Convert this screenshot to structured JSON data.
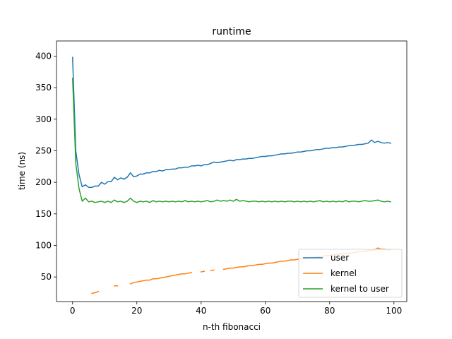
{
  "chart_data": {
    "type": "line",
    "title": "runtime",
    "xlabel": "n-th fibonacci",
    "ylabel": "time (ns)",
    "xlim": [
      -5,
      104
    ],
    "ylim": [
      11,
      424
    ],
    "xticks": [
      0,
      20,
      40,
      60,
      80,
      100
    ],
    "yticks": [
      50,
      100,
      150,
      200,
      250,
      300,
      350,
      400
    ],
    "legend": {
      "position": "lower-right"
    },
    "grid": false,
    "series": [
      {
        "name": "user",
        "color": "#1f77b4",
        "x": [
          0,
          1,
          2,
          3,
          4,
          5,
          6,
          7,
          8,
          9,
          10,
          11,
          12,
          13,
          14,
          15,
          16,
          17,
          18,
          19,
          20,
          21,
          22,
          23,
          24,
          25,
          26,
          27,
          28,
          29,
          30,
          31,
          32,
          33,
          34,
          35,
          36,
          37,
          38,
          39,
          40,
          41,
          42,
          43,
          44,
          45,
          46,
          47,
          48,
          49,
          50,
          51,
          52,
          53,
          54,
          55,
          56,
          57,
          58,
          59,
          60,
          61,
          62,
          63,
          64,
          65,
          66,
          67,
          68,
          69,
          70,
          71,
          72,
          73,
          74,
          75,
          76,
          77,
          78,
          79,
          80,
          81,
          82,
          83,
          84,
          85,
          86,
          87,
          88,
          89,
          90,
          91,
          92,
          93,
          94,
          95,
          96,
          97,
          98,
          99
        ],
        "values": [
          398,
          250,
          212,
          193,
          196,
          192,
          192,
          194,
          194,
          200,
          197,
          201,
          201,
          208,
          204,
          207,
          205,
          208,
          215,
          209,
          210,
          213,
          213,
          215,
          215,
          217,
          217,
          219,
          218,
          220,
          220,
          221,
          221,
          223,
          223,
          224,
          224,
          226,
          226,
          227,
          226,
          228,
          228,
          230,
          232,
          231,
          232,
          233,
          234,
          235,
          234,
          236,
          236,
          237,
          237,
          238,
          238,
          239,
          240,
          241,
          241,
          242,
          242,
          243,
          244,
          245,
          245,
          246,
          246,
          247,
          248,
          248,
          249,
          250,
          250,
          251,
          252,
          252,
          253,
          254,
          254,
          255,
          255,
          256,
          256,
          257,
          258,
          258,
          259,
          260,
          260,
          261,
          262,
          267,
          263,
          265,
          263,
          262,
          263,
          262
        ]
      },
      {
        "name": "kernel",
        "color": "#ff7f0e",
        "x": [
          6,
          7,
          8,
          9,
          10,
          11,
          12,
          13,
          14,
          15,
          16,
          17,
          18,
          19,
          20,
          21,
          22,
          23,
          24,
          25,
          26,
          27,
          28,
          29,
          30,
          31,
          32,
          33,
          34,
          35,
          36,
          37,
          38,
          39,
          40,
          41,
          42,
          43,
          44,
          45,
          46,
          47,
          48,
          49,
          50,
          51,
          52,
          53,
          54,
          55,
          56,
          57,
          58,
          59,
          60,
          61,
          62,
          63,
          64,
          65,
          66,
          67,
          68,
          69,
          70,
          71,
          72,
          73,
          74,
          75,
          76,
          77,
          78,
          79,
          80,
          81,
          82,
          83,
          84,
          85,
          86,
          87,
          88,
          89,
          90,
          91,
          92,
          93,
          94,
          95,
          96,
          97,
          98,
          99
        ],
        "values": [
          24,
          25,
          27,
          null,
          null,
          null,
          null,
          36,
          36,
          null,
          null,
          null,
          39,
          41,
          42,
          43,
          44,
          45,
          45,
          47,
          47,
          48,
          49,
          50,
          51,
          52,
          53,
          54,
          55,
          55,
          56,
          57,
          null,
          null,
          58,
          59,
          null,
          60,
          61,
          null,
          null,
          62,
          63,
          64,
          64,
          65,
          66,
          66,
          67,
          68,
          68,
          69,
          70,
          70,
          71,
          72,
          72,
          73,
          74,
          75,
          75,
          76,
          77,
          77,
          78,
          79,
          79,
          80,
          81,
          81,
          82,
          82,
          83,
          84,
          84,
          85,
          86,
          86,
          87,
          87,
          88,
          88,
          89,
          90,
          90,
          91,
          92,
          92,
          93,
          96,
          94,
          94,
          93,
          93
        ]
      },
      {
        "name": "kernel to user",
        "color": "#2ca02c",
        "x": [
          0,
          1,
          2,
          3,
          4,
          5,
          6,
          7,
          8,
          9,
          10,
          11,
          12,
          13,
          14,
          15,
          16,
          17,
          18,
          19,
          20,
          21,
          22,
          23,
          24,
          25,
          26,
          27,
          28,
          29,
          30,
          31,
          32,
          33,
          34,
          35,
          36,
          37,
          38,
          39,
          40,
          41,
          42,
          43,
          44,
          45,
          46,
          47,
          48,
          49,
          50,
          51,
          52,
          53,
          54,
          55,
          56,
          57,
          58,
          59,
          60,
          61,
          62,
          63,
          64,
          65,
          66,
          67,
          68,
          69,
          70,
          71,
          72,
          73,
          74,
          75,
          76,
          77,
          78,
          79,
          80,
          81,
          82,
          83,
          84,
          85,
          86,
          87,
          88,
          89,
          90,
          91,
          92,
          93,
          94,
          95,
          96,
          97,
          98,
          99
        ],
        "values": [
          365,
          230,
          190,
          170,
          175,
          169,
          170,
          168,
          169,
          170,
          168,
          170,
          168,
          172,
          169,
          170,
          168,
          170,
          175,
          170,
          168,
          170,
          169,
          170,
          168,
          171,
          169,
          170,
          169,
          170,
          169,
          170,
          169,
          170,
          169,
          171,
          169,
          170,
          169,
          170,
          169,
          170,
          171,
          169,
          170,
          172,
          170,
          171,
          170,
          172,
          170,
          173,
          170,
          171,
          170,
          169,
          170,
          170,
          169,
          170,
          169,
          170,
          169,
          170,
          169,
          170,
          169,
          170,
          170,
          169,
          170,
          169,
          170,
          169,
          170,
          169,
          170,
          171,
          169,
          170,
          169,
          170,
          169,
          170,
          169,
          171,
          169,
          170,
          170,
          169,
          170,
          171,
          170,
          170,
          171,
          172,
          170,
          169,
          170,
          169
        ]
      }
    ]
  }
}
